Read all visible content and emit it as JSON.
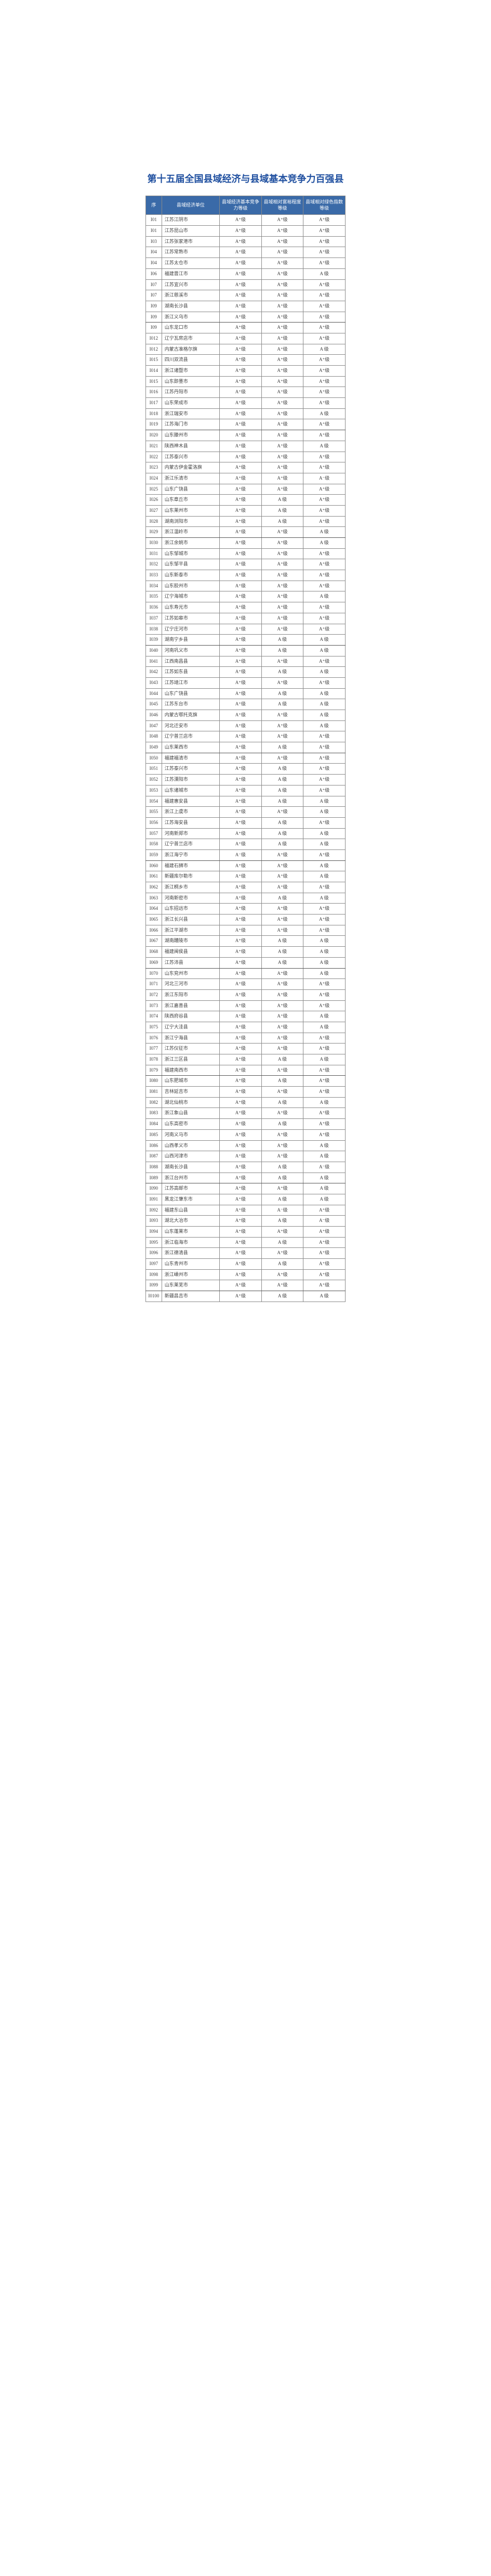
{
  "title": "第十五届全国县域经济与县域基本竞争力百强县",
  "headers": {
    "seq": "序",
    "unit": "县域经济单位",
    "grade1": "县域经济基本竞争力等级",
    "grade2": "县域相对富裕程度等级",
    "grade3": "县域相对绿色指数等级"
  },
  "colors": {
    "title_color": "#2050a0",
    "header_bg": "#3a6aa8",
    "header_text": "#ffffff",
    "border_color": "#8a8a8a",
    "text_color": "#424242",
    "page_bg": "#ffffff"
  },
  "rows": [
    {
      "seq": "I01",
      "unit": "江苏江阴市",
      "g1": "A⁺级",
      "g2": "A⁺级",
      "g3": "A⁺级"
    },
    {
      "seq": "I01",
      "unit": "江苏昆山市",
      "g1": "A⁺级",
      "g2": "A⁺级",
      "g3": "A⁺级"
    },
    {
      "seq": "I03",
      "unit": "江苏张家港市",
      "g1": "A⁺级",
      "g2": "A⁺级",
      "g3": "A⁺级"
    },
    {
      "seq": "I04",
      "unit": "江苏常熟市",
      "g1": "A⁺级",
      "g2": "A⁺级",
      "g3": "A⁺级"
    },
    {
      "seq": "I04",
      "unit": "江苏太仓市",
      "g1": "A⁺级",
      "g2": "A⁺级",
      "g3": "A⁺级"
    },
    {
      "seq": "I06",
      "unit": "福建晋江市",
      "g1": "A⁺级",
      "g2": "A⁺级",
      "g3": "A 级"
    },
    {
      "seq": "I07",
      "unit": "江苏宜兴市",
      "g1": "A⁺级",
      "g2": "A⁺级",
      "g3": "A⁺级"
    },
    {
      "seq": "I07",
      "unit": "浙江慈溪市",
      "g1": "A⁺级",
      "g2": "A⁺级",
      "g3": "A⁺级"
    },
    {
      "seq": "I09",
      "unit": "湖南长沙县",
      "g1": "A⁺级",
      "g2": "A⁺级",
      "g3": "A⁺级"
    },
    {
      "seq": "I09",
      "unit": "浙江义乌市",
      "g1": "A⁺级",
      "g2": "A⁺级",
      "g3": "A⁺级"
    },
    {
      "seq": "I09",
      "unit": "山东龙口市",
      "g1": "A⁺级",
      "g2": "A⁺级",
      "g3": "A⁺级"
    },
    {
      "seq": "I012",
      "unit": "辽宁瓦房店市",
      "g1": "A⁺级",
      "g2": "A⁺级",
      "g3": "A⁺级"
    },
    {
      "seq": "I012",
      "unit": "内蒙古准格尔旗",
      "g1": "A⁺级",
      "g2": "A⁺级",
      "g3": "A 级"
    },
    {
      "seq": "I015",
      "unit": "四川双流县",
      "g1": "A⁺级",
      "g2": "A⁺级",
      "g3": "A⁺级"
    },
    {
      "seq": "I014",
      "unit": "浙江诸暨市",
      "g1": "A⁺级",
      "g2": "A⁺级",
      "g3": "A⁺级"
    },
    {
      "seq": "I015",
      "unit": "山东即墨市",
      "g1": "A⁺级",
      "g2": "A⁺级",
      "g3": "A⁺级"
    },
    {
      "seq": "I016",
      "unit": "江苏丹阳市",
      "g1": "A⁺级",
      "g2": "A⁺级",
      "g3": "A⁺级"
    },
    {
      "seq": "I017",
      "unit": "山东荣成市",
      "g1": "A⁺级",
      "g2": "A⁺级",
      "g3": "A⁺级"
    },
    {
      "seq": "I018",
      "unit": "浙江瑞安市",
      "g1": "A⁺级",
      "g2": "A⁺级",
      "g3": "A 级"
    },
    {
      "seq": "I019",
      "unit": "江苏海门市",
      "g1": "A⁺级",
      "g2": "A⁺级",
      "g3": "A⁺级"
    },
    {
      "seq": "I020",
      "unit": "山东滕州市",
      "g1": "A⁺级",
      "g2": "A⁺级",
      "g3": "A⁺级"
    },
    {
      "seq": "I021",
      "unit": "陕西神木县",
      "g1": "A⁺级",
      "g2": "A⁺级",
      "g3": "A 级"
    },
    {
      "seq": "I022",
      "unit": "江苏泰兴市",
      "g1": "A⁺级",
      "g2": "A⁺级",
      "g3": "A⁺级"
    },
    {
      "seq": "I023",
      "unit": "内蒙古伊金霍洛旗",
      "g1": "A⁺级",
      "g2": "A⁺级",
      "g3": "A⁺级"
    },
    {
      "seq": "I024",
      "unit": "浙江乐清市",
      "g1": "A⁺级",
      "g2": "A⁺级",
      "g3": "A⁻级"
    },
    {
      "seq": "I025",
      "unit": "山东广饶县",
      "g1": "A⁺级",
      "g2": "A⁺级",
      "g3": "A⁺级"
    },
    {
      "seq": "I026",
      "unit": "山东章丘市",
      "g1": "A⁺级",
      "g2": "A 级",
      "g3": "A⁺级"
    },
    {
      "seq": "I027",
      "unit": "山东莱州市",
      "g1": "A⁺级",
      "g2": "A 级",
      "g3": "A⁺级"
    },
    {
      "seq": "I028",
      "unit": "湖南浏阳市",
      "g1": "A⁺级",
      "g2": "A 级",
      "g3": "A⁺级"
    },
    {
      "seq": "I029",
      "unit": "浙江温岭市",
      "g1": "A⁺级",
      "g2": "A⁺级",
      "g3": "A 级"
    },
    {
      "seq": "I030",
      "unit": "浙江余姚市",
      "g1": "A⁺级",
      "g2": "A⁺级",
      "g3": "A 级"
    },
    {
      "seq": "I031",
      "unit": "山东邹城市",
      "g1": "A⁺级",
      "g2": "A⁺级",
      "g3": "A⁺级"
    },
    {
      "seq": "I032",
      "unit": "山东邹平县",
      "g1": "A⁺级",
      "g2": "A⁺级",
      "g3": "A⁺级"
    },
    {
      "seq": "I033",
      "unit": "山东新泰市",
      "g1": "A⁺级",
      "g2": "A⁺级",
      "g3": "A⁺级"
    },
    {
      "seq": "I034",
      "unit": "山东胶州市",
      "g1": "A⁺级",
      "g2": "A⁺级",
      "g3": "A⁺级"
    },
    {
      "seq": "I035",
      "unit": "辽宁海城市",
      "g1": "A⁺级",
      "g2": "A⁺级",
      "g3": "A 级"
    },
    {
      "seq": "I036",
      "unit": "山东寿光市",
      "g1": "A⁺级",
      "g2": "A⁺级",
      "g3": "A⁺级"
    },
    {
      "seq": "I037",
      "unit": "江苏如皋市",
      "g1": "A⁺级",
      "g2": "A⁺级",
      "g3": "A⁺级"
    },
    {
      "seq": "I038",
      "unit": "辽宁庄河市",
      "g1": "A⁺级",
      "g2": "A⁺级",
      "g3": "A⁺级"
    },
    {
      "seq": "I039",
      "unit": "湖南宁乡县",
      "g1": "A⁺级",
      "g2": "A 级",
      "g3": "A 级"
    },
    {
      "seq": "I040",
      "unit": "河南巩义市",
      "g1": "A⁺级",
      "g2": "A 级",
      "g3": "A 级"
    },
    {
      "seq": "I041",
      "unit": "江西南昌县",
      "g1": "A⁺级",
      "g2": "A⁺级",
      "g3": "A⁺级"
    },
    {
      "seq": "I042",
      "unit": "江苏如东县",
      "g1": "A⁺级",
      "g2": "A 级",
      "g3": "A 级"
    },
    {
      "seq": "I043",
      "unit": "江苏靖江市",
      "g1": "A⁺级",
      "g2": "A⁺级",
      "g3": "A⁺级"
    },
    {
      "seq": "I044",
      "unit": "山东广饶县",
      "g1": "A⁺级",
      "g2": "A 级",
      "g3": "A 级"
    },
    {
      "seq": "I045",
      "unit": "江苏东台市",
      "g1": "A⁺级",
      "g2": "A 级",
      "g3": "A 级"
    },
    {
      "seq": "I046",
      "unit": "内蒙古鄂托克旗",
      "g1": "A⁺级",
      "g2": "A⁺级",
      "g3": "A 级"
    },
    {
      "seq": "I047",
      "unit": "河北迁安市",
      "g1": "A⁺级",
      "g2": "A⁺级",
      "g3": "A 级"
    },
    {
      "seq": "I048",
      "unit": "辽宁普兰店市",
      "g1": "A⁺级",
      "g2": "A⁺级",
      "g3": "A⁺级"
    },
    {
      "seq": "I049",
      "unit": "山东莱西市",
      "g1": "A⁺级",
      "g2": "A 级",
      "g3": "A⁺级"
    },
    {
      "seq": "I050",
      "unit": "福建福清市",
      "g1": "A⁺级",
      "g2": "A⁺级",
      "g3": "A⁺级"
    },
    {
      "seq": "I051",
      "unit": "江苏泰兴市",
      "g1": "A⁺级",
      "g2": "A 级",
      "g3": "A⁺级"
    },
    {
      "seq": "I052",
      "unit": "江苏溧阳市",
      "g1": "A⁺级",
      "g2": "A 级",
      "g3": "A⁺级"
    },
    {
      "seq": "I053",
      "unit": "山东诸城市",
      "g1": "A⁺级",
      "g2": "A 级",
      "g3": "A⁺级"
    },
    {
      "seq": "I054",
      "unit": "福建惠安县",
      "g1": "A⁺级",
      "g2": "A 级",
      "g3": "A 级"
    },
    {
      "seq": "I055",
      "unit": "浙江上虞市",
      "g1": "A⁺级",
      "g2": "A⁺级",
      "g3": "A 级"
    },
    {
      "seq": "I056",
      "unit": "江苏海安县",
      "g1": "A⁺级",
      "g2": "A 级",
      "g3": "A⁺级"
    },
    {
      "seq": "I057",
      "unit": "河南新郑市",
      "g1": "A⁺级",
      "g2": "A 级",
      "g3": "A 级"
    },
    {
      "seq": "I058",
      "unit": "辽宁普兰店市",
      "g1": "A⁺级",
      "g2": "A 级",
      "g3": "A 级"
    },
    {
      "seq": "I059",
      "unit": "浙江海宁市",
      "g1": "A⁻级",
      "g2": "A⁺级",
      "g3": "A⁺级"
    },
    {
      "seq": "I060",
      "unit": "福建石狮市",
      "g1": "A⁺级",
      "g2": "A⁺级",
      "g3": "A 级"
    },
    {
      "seq": "I061",
      "unit": "新疆库尔勒市",
      "g1": "A⁺级",
      "g2": "A⁺级",
      "g3": "A 级"
    },
    {
      "seq": "I062",
      "unit": "浙江桐乡市",
      "g1": "A⁺级",
      "g2": "A⁺级",
      "g3": "A⁺级"
    },
    {
      "seq": "I063",
      "unit": "河南新密市",
      "g1": "A⁺级",
      "g2": "A 级",
      "g3": "A 级"
    },
    {
      "seq": "I064",
      "unit": "山东招远市",
      "g1": "A⁺级",
      "g2": "A⁺级",
      "g3": "A⁺级"
    },
    {
      "seq": "I065",
      "unit": "浙江长兴县",
      "g1": "A⁺级",
      "g2": "A⁺级",
      "g3": "A⁺级"
    },
    {
      "seq": "I066",
      "unit": "浙江平湖市",
      "g1": "A⁺级",
      "g2": "A⁺级",
      "g3": "A⁺级"
    },
    {
      "seq": "I067",
      "unit": "湖南醴陵市",
      "g1": "A⁺级",
      "g2": "A 级",
      "g3": "A 级"
    },
    {
      "seq": "I068",
      "unit": "福建闽侯县",
      "g1": "A⁺级",
      "g2": "A 级",
      "g3": "A 级"
    },
    {
      "seq": "I069",
      "unit": "江苏沛县",
      "g1": "A⁺级",
      "g2": "A 级",
      "g3": "A 级"
    },
    {
      "seq": "I070",
      "unit": "山东兖州市",
      "g1": "A⁺级",
      "g2": "A⁺级",
      "g3": "A 级"
    },
    {
      "seq": "I071",
      "unit": "河北三河市",
      "g1": "A⁺级",
      "g2": "A⁺级",
      "g3": "A⁺级"
    },
    {
      "seq": "I072",
      "unit": "浙江东阳市",
      "g1": "A⁺级",
      "g2": "A⁺级",
      "g3": "A⁺级"
    },
    {
      "seq": "I073",
      "unit": "浙江嘉善县",
      "g1": "A⁺级",
      "g2": "A⁺级",
      "g3": "A⁺级"
    },
    {
      "seq": "I074",
      "unit": "陕西府谷县",
      "g1": "A⁺级",
      "g2": "A⁺级",
      "g3": "A 级"
    },
    {
      "seq": "I075",
      "unit": "辽宁大洼县",
      "g1": "A⁺级",
      "g2": "A⁺级",
      "g3": "A 级"
    },
    {
      "seq": "I076",
      "unit": "浙江宁海县",
      "g1": "A⁺级",
      "g2": "A⁺级",
      "g3": "A⁺级"
    },
    {
      "seq": "I077",
      "unit": "江苏仪征市",
      "g1": "A⁺级",
      "g2": "A⁺级",
      "g3": "A⁺级"
    },
    {
      "seq": "I078",
      "unit": "浙江三区县",
      "g1": "A⁺级",
      "g2": "A 级",
      "g3": "A 级"
    },
    {
      "seq": "I079",
      "unit": "福建南西市",
      "g1": "A⁺级",
      "g2": "A⁺级",
      "g3": "A⁺级"
    },
    {
      "seq": "I080",
      "unit": "山东肥城市",
      "g1": "A⁺级",
      "g2": "A 级",
      "g3": "A⁺级"
    },
    {
      "seq": "I081",
      "unit": "吉林延吉市",
      "g1": "A⁺级",
      "g2": "A⁺级",
      "g3": "A⁺级"
    },
    {
      "seq": "I082",
      "unit": "湖北仙桃市",
      "g1": "A⁺级",
      "g2": "A 级",
      "g3": "A 级"
    },
    {
      "seq": "I083",
      "unit": "浙江象山县",
      "g1": "A⁺级",
      "g2": "A⁺级",
      "g3": "A⁺级"
    },
    {
      "seq": "I084",
      "unit": "山东高密市",
      "g1": "A⁺级",
      "g2": "A 级",
      "g3": "A⁺级"
    },
    {
      "seq": "I085",
      "unit": "河南义马市",
      "g1": "A⁺级",
      "g2": "A⁺级",
      "g3": "A⁺级"
    },
    {
      "seq": "I086",
      "unit": "山西孝义市",
      "g1": "A⁺级",
      "g2": "A⁺级",
      "g3": "A 级"
    },
    {
      "seq": "I087",
      "unit": "山西河津市",
      "g1": "A⁺级",
      "g2": "A⁺级",
      "g3": "A 级"
    },
    {
      "seq": "I088",
      "unit": "湖南长沙县",
      "g1": "A⁺级",
      "g2": "A 级",
      "g3": "A⁻级"
    },
    {
      "seq": "I089",
      "unit": "浙江台州市",
      "g1": "A⁺级",
      "g2": "A 级",
      "g3": "A 级"
    },
    {
      "seq": "I090",
      "unit": "江苏高邮市",
      "g1": "A⁺级",
      "g2": "A⁺级",
      "g3": "A 级"
    },
    {
      "seq": "I091",
      "unit": "黑龙江肇东市",
      "g1": "A⁺级",
      "g2": "A 级",
      "g3": "A 级"
    },
    {
      "seq": "I092",
      "unit": "福建东山县",
      "g1": "A⁺级",
      "g2": "A⁻级",
      "g3": "A⁺级"
    },
    {
      "seq": "I093",
      "unit": "湖北大冶市",
      "g1": "A⁺级",
      "g2": "A 级",
      "g3": "A⁻级"
    },
    {
      "seq": "I094",
      "unit": "山东蓬莱市",
      "g1": "A⁺级",
      "g2": "A⁺级",
      "g3": "A⁺级"
    },
    {
      "seq": "I095",
      "unit": "浙江临海市",
      "g1": "A⁺级",
      "g2": "A 级",
      "g3": "A⁺级"
    },
    {
      "seq": "I096",
      "unit": "浙江德清县",
      "g1": "A⁺级",
      "g2": "A⁺级",
      "g3": "A⁺级"
    },
    {
      "seq": "I097",
      "unit": "山东青州市",
      "g1": "A⁺级",
      "g2": "A 级",
      "g3": "A⁺级"
    },
    {
      "seq": "I098",
      "unit": "浙江嵊州市",
      "g1": "A⁺级",
      "g2": "A⁺级",
      "g3": "A⁺级"
    },
    {
      "seq": "I099",
      "unit": "山东莱芜市",
      "g1": "A⁺级",
      "g2": "A⁺级",
      "g3": "A⁺级"
    },
    {
      "seq": "I0100",
      "unit": "新疆昌吉市",
      "g1": "A⁺级",
      "g2": "A 级",
      "g3": "A 级"
    }
  ]
}
